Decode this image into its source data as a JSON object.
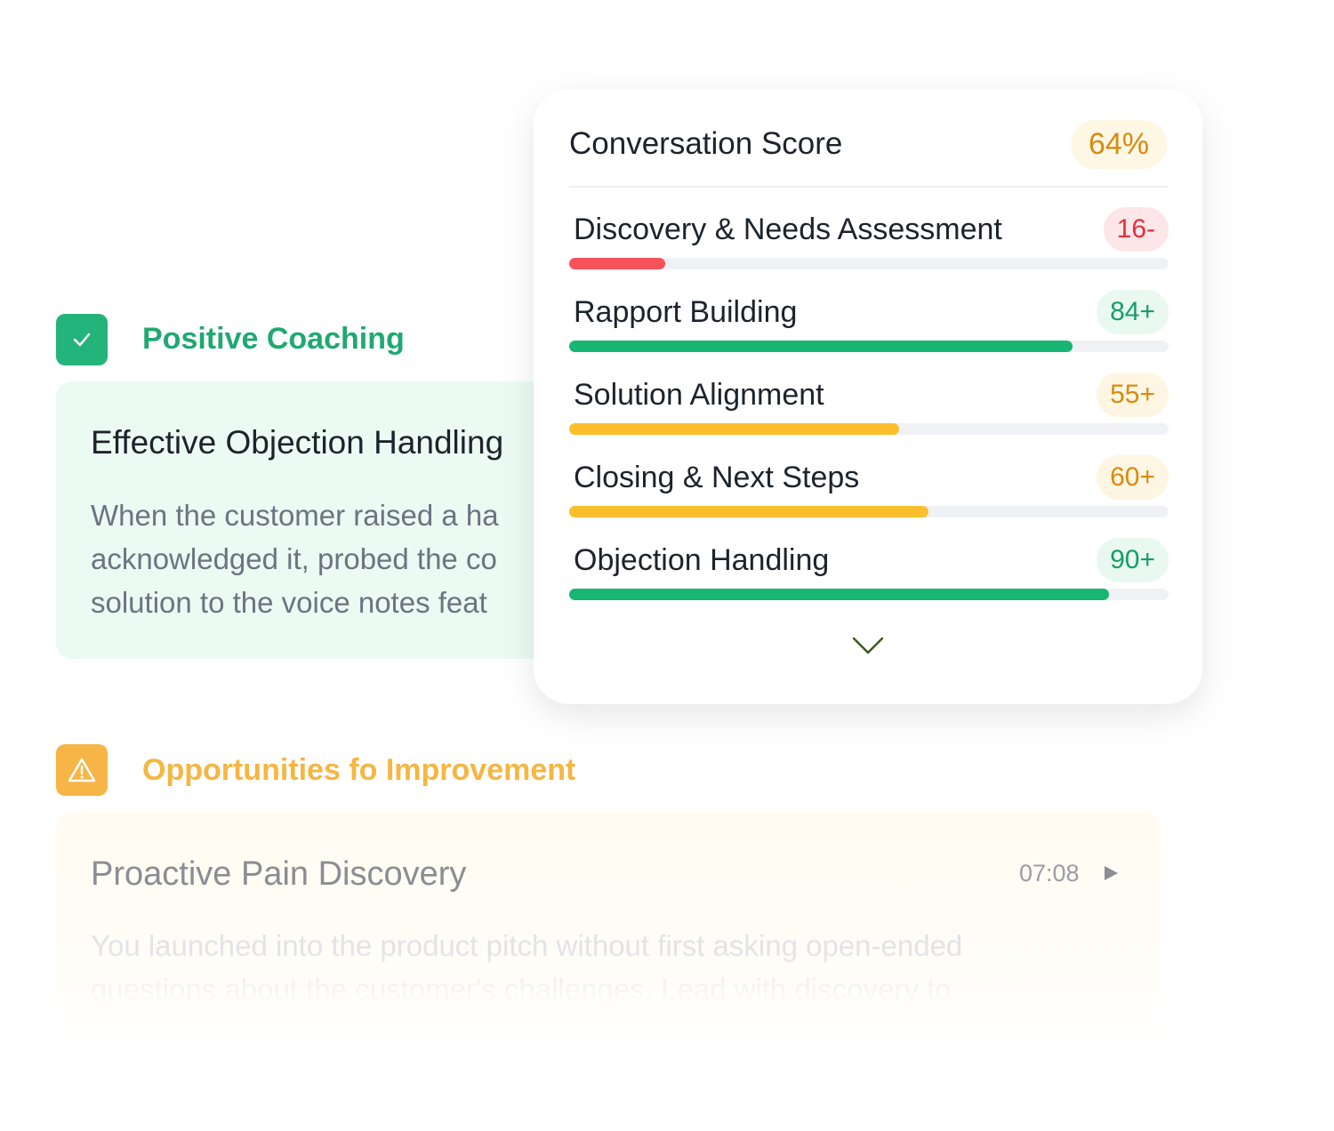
{
  "positive": {
    "heading": "Positive Coaching",
    "card": {
      "title": "Effective Objection Handling",
      "lines": [
        "When the customer raised a ha",
        "acknowledged it, probed the co",
        "solution to the voice notes feat"
      ]
    }
  },
  "improvement": {
    "heading": "Opportunities fo Improvement",
    "card": {
      "title": "Proactive Pain Discovery",
      "time": "07:08",
      "lines": [
        "You launched into the product pitch without first asking open-ended",
        "questions about the customer's challenges. Lead with discovery to"
      ]
    }
  },
  "score_card": {
    "title": "Conversation Score",
    "score": "64%",
    "items": [
      {
        "name": "Discovery & Needs Assessment",
        "value": 16,
        "label": "16-",
        "color": "#f7525a",
        "badge_bg": "#fde6e8",
        "badge_color": "#e0313e"
      },
      {
        "name": "Rapport Building",
        "value": 84,
        "label": "84+",
        "color": "#19b573",
        "badge_bg": "#e9f8f0",
        "badge_color": "#179e65"
      },
      {
        "name": "Solution Alignment",
        "value": 55,
        "label": "55+",
        "color": "#fbbf2d",
        "badge_bg": "#fef6e2",
        "badge_color": "#d98a10"
      },
      {
        "name": "Closing & Next Steps",
        "value": 60,
        "label": "60+",
        "color": "#fbbf2d",
        "badge_bg": "#fef6e2",
        "badge_color": "#d98a10"
      },
      {
        "name": "Objection Handling",
        "value": 90,
        "label": "90+",
        "color": "#19b573",
        "badge_bg": "#e9f8f0",
        "badge_color": "#179e65"
      }
    ]
  }
}
